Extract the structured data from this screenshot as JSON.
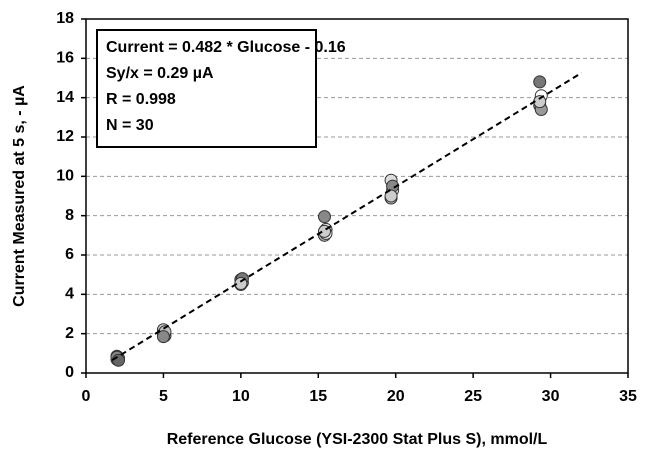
{
  "chart_data": {
    "type": "scatter",
    "xlabel": "Reference Glucose (YSI-2300 Stat Plus S), mmol/L",
    "ylabel": "Current Measured at 5 s, - µA",
    "annotations": [
      "Current = 0.482 * Glucose - 0.16",
      "Sy/x = 0.29 µA",
      "R = 0.998",
      "N = 30"
    ],
    "xlim": [
      0,
      35
    ],
    "xticks": [
      0,
      5,
      10,
      15,
      20,
      25,
      30,
      35
    ],
    "ylim": [
      0,
      18
    ],
    "yticks": [
      0,
      2,
      4,
      6,
      8,
      10,
      12,
      14,
      16,
      18
    ],
    "grid": true,
    "series": [
      {
        "x": [
          2,
          2,
          2.1,
          2,
          2.1,
          5,
          5.1,
          5,
          5.1,
          5,
          10,
          10.1,
          10,
          10.1,
          10,
          15.4,
          15.5,
          15.4,
          15.5,
          15.4,
          19.7,
          19.8,
          19.7,
          19.8,
          19.7,
          29.3,
          29.4,
          29.3,
          29.4,
          29.3
        ],
        "values": [
          0.85,
          0.7,
          0.75,
          0.8,
          0.65,
          2.2,
          1.9,
          2.0,
          2.1,
          1.85,
          4.75,
          4.6,
          4.5,
          4.8,
          4.55,
          7.95,
          7.3,
          7.0,
          7.1,
          7.2,
          9.8,
          9.3,
          8.9,
          9.5,
          9.0,
          14.8,
          14.1,
          13.6,
          13.4,
          13.8
        ],
        "colors": [
          "#777",
          "#555",
          "#999",
          "#888",
          "#666",
          "#ccc",
          "#999",
          "#eee",
          "#bbb",
          "#888",
          "#888",
          "#aaa",
          "#eee",
          "#777",
          "#ccc",
          "#888",
          "#ddd",
          "#aaa",
          "#eee",
          "#ccc",
          "#ddd",
          "#eee",
          "#bbb",
          "#888",
          "#ccc",
          "#777",
          "#fff",
          "#888",
          "#999",
          "#ccc"
        ]
      }
    ],
    "trendline": {
      "x": [
        1.7,
        32
      ],
      "y": [
        0.66,
        15.26
      ]
    }
  }
}
